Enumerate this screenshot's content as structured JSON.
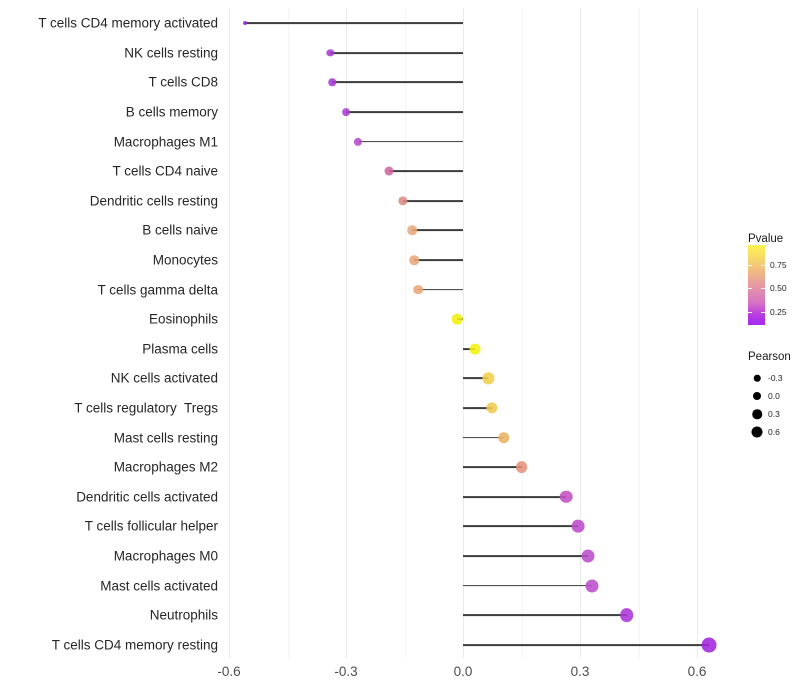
{
  "chart_data": {
    "type": "lollipop",
    "title": "",
    "xlabel": "",
    "ylabel": "",
    "xlim": [
      -0.66,
      0.72
    ],
    "grid": "major-minor-vertical",
    "x_ticks": [
      {
        "value": -0.6,
        "label": "-0.6"
      },
      {
        "value": -0.3,
        "label": "-0.3"
      },
      {
        "value": 0.0,
        "label": "0.0"
      },
      {
        "value": 0.3,
        "label": "0.3"
      },
      {
        "value": 0.6,
        "label": "0.6"
      }
    ],
    "x_minor_ticks": [
      -0.45,
      -0.15,
      0.15,
      0.45
    ],
    "categories": [
      "T cells CD4 memory activated",
      "NK cells resting",
      "T cells CD8",
      "B cells memory",
      "Macrophages M1",
      "T cells CD4 naive",
      "Dendritic cells resting",
      "B cells naive",
      "Monocytes",
      "T cells gamma delta",
      "Eosinophils",
      "Plasma cells",
      "NK cells activated",
      "T cells regulatory  Tregs",
      "Mast cells resting",
      "Macrophages M2",
      "Dendritic cells activated",
      "T cells follicular helper",
      "Macrophages M0",
      "Mast cells activated",
      "Neutrophils",
      "T cells CD4 memory resting"
    ],
    "series": [
      {
        "name": "Pearson",
        "values": [
          -0.56,
          -0.34,
          -0.335,
          -0.3,
          -0.27,
          -0.19,
          -0.155,
          -0.13,
          -0.125,
          -0.115,
          -0.015,
          0.03,
          0.065,
          0.075,
          0.105,
          0.15,
          0.265,
          0.295,
          0.32,
          0.33,
          0.42,
          0.63
        ]
      }
    ],
    "point_colors": [
      "#9d2bdb",
      "#a93bd4",
      "#a93bd4",
      "#ab3fd2",
      "#b44cc9",
      "#d0679e",
      "#de8b83",
      "#e8a87c",
      "#e8a87c",
      "#e9a878",
      "#f2f10d",
      "#f2f10d",
      "#f0d04a",
      "#efcb50",
      "#ebb25f",
      "#e58f7d",
      "#c351c4",
      "#bb4bcb",
      "#ba4eca",
      "#bb4dcb",
      "#aa36d6",
      "#a126dd"
    ],
    "stem_color": "#3d3d3d",
    "legend": {
      "pvalue": {
        "title": "Pvalue",
        "ticks": [
          {
            "label": "0.75",
            "pos": 25
          },
          {
            "label": "0.50",
            "pos": 54
          },
          {
            "label": "0.25",
            "pos": 84
          }
        ],
        "gradient_stops": [
          {
            "color": "#fcf44f",
            "pos": 0
          },
          {
            "color": "#f3c47c",
            "pos": 28
          },
          {
            "color": "#e69aa2",
            "pos": 50
          },
          {
            "color": "#d673c2",
            "pos": 72
          },
          {
            "color": "#b73ae2",
            "pos": 88
          },
          {
            "color": "#a22bee",
            "pos": 100
          }
        ]
      },
      "pearson": {
        "title": "Pearson",
        "entries": [
          {
            "label": "-0.3",
            "value": -0.3
          },
          {
            "label": "0.0",
            "value": 0.0
          },
          {
            "label": "0.3",
            "value": 0.3
          },
          {
            "label": "0.6",
            "value": 0.6
          }
        ]
      }
    }
  }
}
